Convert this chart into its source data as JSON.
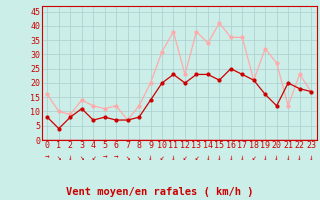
{
  "hours": [
    0,
    1,
    2,
    3,
    4,
    5,
    6,
    7,
    8,
    9,
    10,
    11,
    12,
    13,
    14,
    15,
    16,
    17,
    18,
    19,
    20,
    21,
    22,
    23
  ],
  "wind_mean": [
    8,
    4,
    8,
    11,
    7,
    8,
    7,
    7,
    8,
    14,
    20,
    23,
    20,
    23,
    23,
    21,
    25,
    23,
    21,
    16,
    12,
    20,
    18,
    17
  ],
  "wind_gust": [
    16,
    10,
    9,
    14,
    12,
    11,
    12,
    7,
    12,
    20,
    31,
    38,
    23,
    38,
    34,
    41,
    36,
    36,
    21,
    32,
    27,
    12,
    23,
    17
  ],
  "wind_dir_symbols": [
    "→",
    "↘",
    "↓",
    "↘",
    "↙",
    "→",
    "→",
    "↘",
    "↘",
    "↓",
    "↙",
    "↓",
    "↙",
    "↙",
    "↓",
    "↓",
    "↓",
    "↓",
    "↙",
    "↓",
    "↓",
    "↓",
    "↓",
    "↓"
  ],
  "mean_color": "#cc0000",
  "gust_color": "#ffaaaa",
  "background_color": "#cceee8",
  "grid_color": "#aacccc",
  "xlabel": "Vent moyen/en rafales ( km/h )",
  "ylabel_ticks": [
    0,
    5,
    10,
    15,
    20,
    25,
    30,
    35,
    40,
    45
  ],
  "ylim": [
    0,
    47
  ],
  "xlim": [
    -0.5,
    23.5
  ],
  "axis_label_fontsize": 7.5,
  "tick_fontsize": 6,
  "dir_fontsize": 5.5
}
